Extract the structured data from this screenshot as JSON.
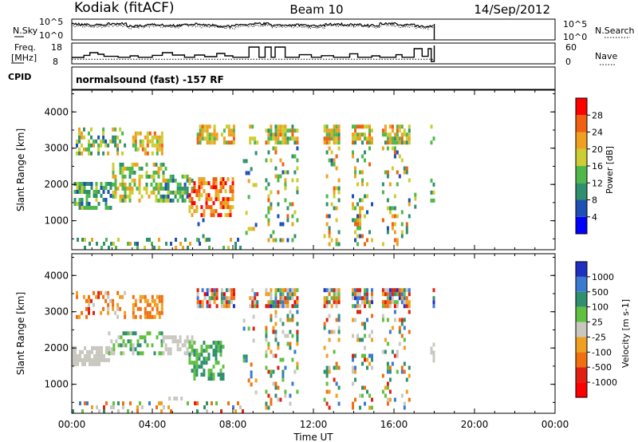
{
  "header": {
    "station": "Kodiak (fitACF)",
    "beam": "Beam 10",
    "date": "14/Sep/2012"
  },
  "noise_panel": {
    "left_label": "N.Sky",
    "right_label": "N.Search",
    "left_ticks": [
      "10^5",
      "10^0"
    ],
    "right_ticks": [
      "10^5",
      "10^0"
    ]
  },
  "freq_panel": {
    "left_label_1": "Freq.",
    "left_label_2": "[MHz]",
    "right_label": "Nave",
    "left_ticks": [
      "18",
      "8"
    ],
    "right_ticks": [
      "60",
      "0"
    ]
  },
  "cpid": {
    "label": "CPID",
    "value": "normalsound (fast) -157 RF"
  },
  "chart_data": [
    {
      "type": "heatmap",
      "name": "power",
      "ylabel": "Slant Range [km]",
      "yticks": [
        "1000",
        "2000",
        "3000",
        "4000"
      ],
      "ylim": [
        200,
        4600
      ],
      "xlim": [
        0,
        24
      ],
      "colorbar": {
        "label": "Power [dB]",
        "ticks": [
          "4",
          "8",
          "12",
          "16",
          "20",
          "24",
          "28"
        ],
        "colors": [
          "#0000ff",
          "#1e4fb4",
          "#2f8f6e",
          "#4fb84a",
          "#cccc33",
          "#f0a020",
          "#f06010",
          "#ff0000"
        ]
      },
      "regions": [
        {
          "t0": 0.2,
          "t1": 2.6,
          "r0": 2800,
          "r1": 3500,
          "density": 0.35,
          "cmin": 1,
          "cmax": 5
        },
        {
          "t0": 0.1,
          "t1": 2.0,
          "r0": 1300,
          "r1": 2000,
          "density": 0.55,
          "cmin": 1,
          "cmax": 4
        },
        {
          "t0": 2.0,
          "t1": 4.8,
          "r0": 1500,
          "r1": 2500,
          "density": 0.45,
          "cmin": 2,
          "cmax": 5
        },
        {
          "t0": 3.0,
          "t1": 4.5,
          "r0": 2800,
          "r1": 3400,
          "density": 0.55,
          "cmin": 3,
          "cmax": 6
        },
        {
          "t0": 4.5,
          "t1": 6.0,
          "r0": 1500,
          "r1": 2200,
          "density": 0.5,
          "cmin": 1,
          "cmax": 4
        },
        {
          "t0": 5.8,
          "t1": 8.0,
          "r0": 1100,
          "r1": 2100,
          "density": 0.6,
          "cmin": 4,
          "cmax": 7
        },
        {
          "t0": 6.0,
          "t1": 7.0,
          "r0": 300,
          "r1": 1000,
          "density": 0.06,
          "cmin": 1,
          "cmax": 5
        },
        {
          "t0": 0.0,
          "t1": 8.5,
          "r0": 200,
          "r1": 450,
          "density": 0.25,
          "cmin": 1,
          "cmax": 5
        },
        {
          "t0": 6.2,
          "t1": 7.2,
          "r0": 3100,
          "r1": 3550,
          "density": 0.6,
          "cmin": 3,
          "cmax": 6
        },
        {
          "t0": 7.4,
          "t1": 8.0,
          "r0": 3100,
          "r1": 3550,
          "density": 0.6,
          "cmin": 3,
          "cmax": 6
        },
        {
          "t0": 8.8,
          "t1": 9.2,
          "r0": 3100,
          "r1": 3550,
          "density": 0.65,
          "cmin": 2,
          "cmax": 6
        },
        {
          "t0": 8.5,
          "t1": 9.2,
          "r0": 500,
          "r1": 3000,
          "density": 0.15,
          "cmin": 1,
          "cmax": 5
        },
        {
          "t0": 9.6,
          "t1": 11.2,
          "r0": 3100,
          "r1": 3550,
          "density": 0.75,
          "cmin": 2,
          "cmax": 6
        },
        {
          "t0": 9.6,
          "t1": 11.2,
          "r0": 300,
          "r1": 3000,
          "density": 0.22,
          "cmin": 1,
          "cmax": 6
        },
        {
          "t0": 12.5,
          "t1": 13.3,
          "r0": 3100,
          "r1": 3550,
          "density": 0.75,
          "cmin": 2,
          "cmax": 6
        },
        {
          "t0": 12.5,
          "t1": 13.3,
          "r0": 300,
          "r1": 3000,
          "density": 0.22,
          "cmin": 1,
          "cmax": 6
        },
        {
          "t0": 13.9,
          "t1": 14.9,
          "r0": 3100,
          "r1": 3550,
          "density": 0.75,
          "cmin": 2,
          "cmax": 6
        },
        {
          "t0": 13.9,
          "t1": 14.9,
          "r0": 300,
          "r1": 3000,
          "density": 0.25,
          "cmin": 1,
          "cmax": 6
        },
        {
          "t0": 15.4,
          "t1": 16.8,
          "r0": 3100,
          "r1": 3550,
          "density": 0.75,
          "cmin": 2,
          "cmax": 6
        },
        {
          "t0": 15.4,
          "t1": 16.8,
          "r0": 300,
          "r1": 3000,
          "density": 0.22,
          "cmin": 1,
          "cmax": 6
        },
        {
          "t0": 17.0,
          "t1": 17.3,
          "r0": 1000,
          "r1": 2700,
          "density": 0.12,
          "cmin": 1,
          "cmax": 4
        },
        {
          "t0": 17.8,
          "t1": 18.0,
          "r0": 1500,
          "r1": 2300,
          "density": 0.5,
          "cmin": 2,
          "cmax": 4
        },
        {
          "t0": 17.8,
          "t1": 18.0,
          "r0": 3100,
          "r1": 3550,
          "density": 0.5,
          "cmin": 2,
          "cmax": 4
        }
      ]
    },
    {
      "type": "heatmap",
      "name": "velocity",
      "ylabel": "Slant Range [km]",
      "yticks": [
        "1000",
        "2000",
        "3000",
        "4000"
      ],
      "ylim": [
        200,
        4600
      ],
      "xlim": [
        0,
        24
      ],
      "colorbar": {
        "label": "Velocity [m s-1]",
        "ticks": [
          "1000",
          "500",
          "100",
          "25",
          "-25",
          "-100",
          "-500",
          "-1000"
        ],
        "colors": [
          "#1e30c0",
          "#3a7ad0",
          "#2f8f6e",
          "#60c040",
          "#c8c8c0",
          "#f0a020",
          "#f07010",
          "#e02010",
          "#ff0000"
        ]
      },
      "regions": [
        {
          "t0": 0.2,
          "t1": 2.6,
          "r0": 2800,
          "r1": 3500,
          "density": 0.3,
          "cmin": 4,
          "cmax": 7
        },
        {
          "t0": 0.0,
          "t1": 1.8,
          "r0": 1500,
          "r1": 2000,
          "density": 0.7,
          "cmin": 4,
          "cmax": 4
        },
        {
          "t0": 1.8,
          "t1": 4.5,
          "r0": 1800,
          "r1": 2400,
          "density": 0.4,
          "cmin": 2,
          "cmax": 4
        },
        {
          "t0": 3.0,
          "t1": 4.5,
          "r0": 2800,
          "r1": 3400,
          "density": 0.6,
          "cmin": 5,
          "cmax": 6
        },
        {
          "t0": 4.5,
          "t1": 6.0,
          "r0": 1800,
          "r1": 2300,
          "density": 0.6,
          "cmin": 4,
          "cmax": 4
        },
        {
          "t0": 5.8,
          "t1": 7.5,
          "r0": 1100,
          "r1": 2200,
          "density": 0.55,
          "cmin": 2,
          "cmax": 3
        },
        {
          "t0": 0.0,
          "t1": 8.5,
          "r0": 200,
          "r1": 450,
          "density": 0.25,
          "cmin": 1,
          "cmax": 7
        },
        {
          "t0": 4.8,
          "t1": 5.4,
          "r0": 550,
          "r1": 650,
          "density": 0.8,
          "cmin": 4,
          "cmax": 4
        },
        {
          "t0": 6.2,
          "t1": 7.2,
          "r0": 3100,
          "r1": 3550,
          "density": 0.6,
          "cmin": 0,
          "cmax": 8
        },
        {
          "t0": 7.4,
          "t1": 8.0,
          "r0": 3100,
          "r1": 3550,
          "density": 0.6,
          "cmin": 0,
          "cmax": 8
        },
        {
          "t0": 8.8,
          "t1": 9.2,
          "r0": 3100,
          "r1": 3550,
          "density": 0.65,
          "cmin": 0,
          "cmax": 8
        },
        {
          "t0": 8.5,
          "t1": 9.2,
          "r0": 500,
          "r1": 3000,
          "density": 0.15,
          "cmin": 1,
          "cmax": 7
        },
        {
          "t0": 9.6,
          "t1": 11.2,
          "r0": 3100,
          "r1": 3550,
          "density": 0.8,
          "cmin": 0,
          "cmax": 8
        },
        {
          "t0": 9.6,
          "t1": 11.2,
          "r0": 300,
          "r1": 3000,
          "density": 0.22,
          "cmin": 1,
          "cmax": 7
        },
        {
          "t0": 12.5,
          "t1": 13.3,
          "r0": 3100,
          "r1": 3550,
          "density": 0.8,
          "cmin": 0,
          "cmax": 8
        },
        {
          "t0": 12.5,
          "t1": 13.3,
          "r0": 300,
          "r1": 3000,
          "density": 0.22,
          "cmin": 1,
          "cmax": 7
        },
        {
          "t0": 13.9,
          "t1": 14.9,
          "r0": 3100,
          "r1": 3550,
          "density": 0.8,
          "cmin": 0,
          "cmax": 8
        },
        {
          "t0": 13.9,
          "t1": 14.9,
          "r0": 300,
          "r1": 3000,
          "density": 0.25,
          "cmin": 1,
          "cmax": 7
        },
        {
          "t0": 15.4,
          "t1": 16.8,
          "r0": 3100,
          "r1": 3550,
          "density": 0.8,
          "cmin": 0,
          "cmax": 8
        },
        {
          "t0": 15.4,
          "t1": 16.8,
          "r0": 300,
          "r1": 3000,
          "density": 0.22,
          "cmin": 1,
          "cmax": 7
        },
        {
          "t0": 17.8,
          "t1": 18.0,
          "r0": 1600,
          "r1": 2200,
          "density": 0.55,
          "cmin": 4,
          "cmax": 4
        },
        {
          "t0": 17.8,
          "t1": 18.0,
          "r0": 3100,
          "r1": 3550,
          "density": 0.5,
          "cmin": 0,
          "cmax": 8
        }
      ]
    }
  ],
  "time_axis": {
    "label": "Time UT",
    "ticks": [
      "00:00",
      "04:00",
      "08:00",
      "12:00",
      "16:00",
      "20:00",
      "00:00"
    ],
    "xlim": [
      0,
      24
    ]
  },
  "noise_series": {
    "sky_levels": [
      3.8,
      3.6,
      3.9,
      3.4,
      3.7,
      3.5,
      3.8,
      3.6,
      3.3,
      3.7,
      3.9,
      3.5,
      3.6,
      3.4,
      3.8,
      3.7,
      3.5,
      3.9,
      3.6,
      3.3,
      3.7
    ],
    "search_levels": [
      3.4,
      3.2,
      3.5,
      3.0,
      3.3,
      3.1,
      3.4,
      3.2,
      2.9,
      3.3,
      3.5,
      3.1,
      3.2,
      3.0,
      3.4,
      3.3,
      3.1,
      3.5,
      3.2,
      2.9,
      3.3
    ]
  },
  "freq_series": {
    "steps": [
      {
        "t": 0.0,
        "f": 10.5
      },
      {
        "t": 0.6,
        "f": 11.8
      },
      {
        "t": 0.9,
        "f": 13.5
      },
      {
        "t": 1.3,
        "f": 12.5
      },
      {
        "t": 1.6,
        "f": 11.2
      },
      {
        "t": 2.3,
        "f": 10.6
      },
      {
        "t": 2.9,
        "f": 11.5
      },
      {
        "t": 3.3,
        "f": 10.6
      },
      {
        "t": 4.0,
        "f": 11.8
      },
      {
        "t": 4.5,
        "f": 13.5
      },
      {
        "t": 5.0,
        "f": 12.0
      },
      {
        "t": 5.6,
        "f": 10.6
      },
      {
        "t": 6.1,
        "f": 12.0
      },
      {
        "t": 6.6,
        "f": 11.0
      },
      {
        "t": 7.2,
        "f": 13.0
      },
      {
        "t": 7.6,
        "f": 11.5
      },
      {
        "t": 8.0,
        "f": 10.6
      },
      {
        "t": 8.8,
        "f": 17.0
      },
      {
        "t": 9.3,
        "f": 10.6
      },
      {
        "t": 9.6,
        "f": 17.0
      },
      {
        "t": 9.9,
        "f": 10.6
      },
      {
        "t": 10.1,
        "f": 17.0
      },
      {
        "t": 10.6,
        "f": 10.6
      },
      {
        "t": 11.3,
        "f": 12.2
      },
      {
        "t": 11.9,
        "f": 10.6
      },
      {
        "t": 12.4,
        "f": 11.6
      },
      {
        "t": 13.0,
        "f": 10.6
      },
      {
        "t": 13.8,
        "f": 12.8
      },
      {
        "t": 14.2,
        "f": 10.6
      },
      {
        "t": 14.9,
        "f": 11.5
      },
      {
        "t": 15.3,
        "f": 10.6
      },
      {
        "t": 16.1,
        "f": 12.2
      },
      {
        "t": 16.4,
        "f": 10.6
      },
      {
        "t": 17.0,
        "f": 16.0
      },
      {
        "t": 17.4,
        "f": 11.2
      },
      {
        "t": 17.7,
        "f": 16.0
      },
      {
        "t": 17.85,
        "f": 8.0
      },
      {
        "t": 18.0,
        "f": 18.0
      }
    ],
    "nave_level": 9.4
  }
}
